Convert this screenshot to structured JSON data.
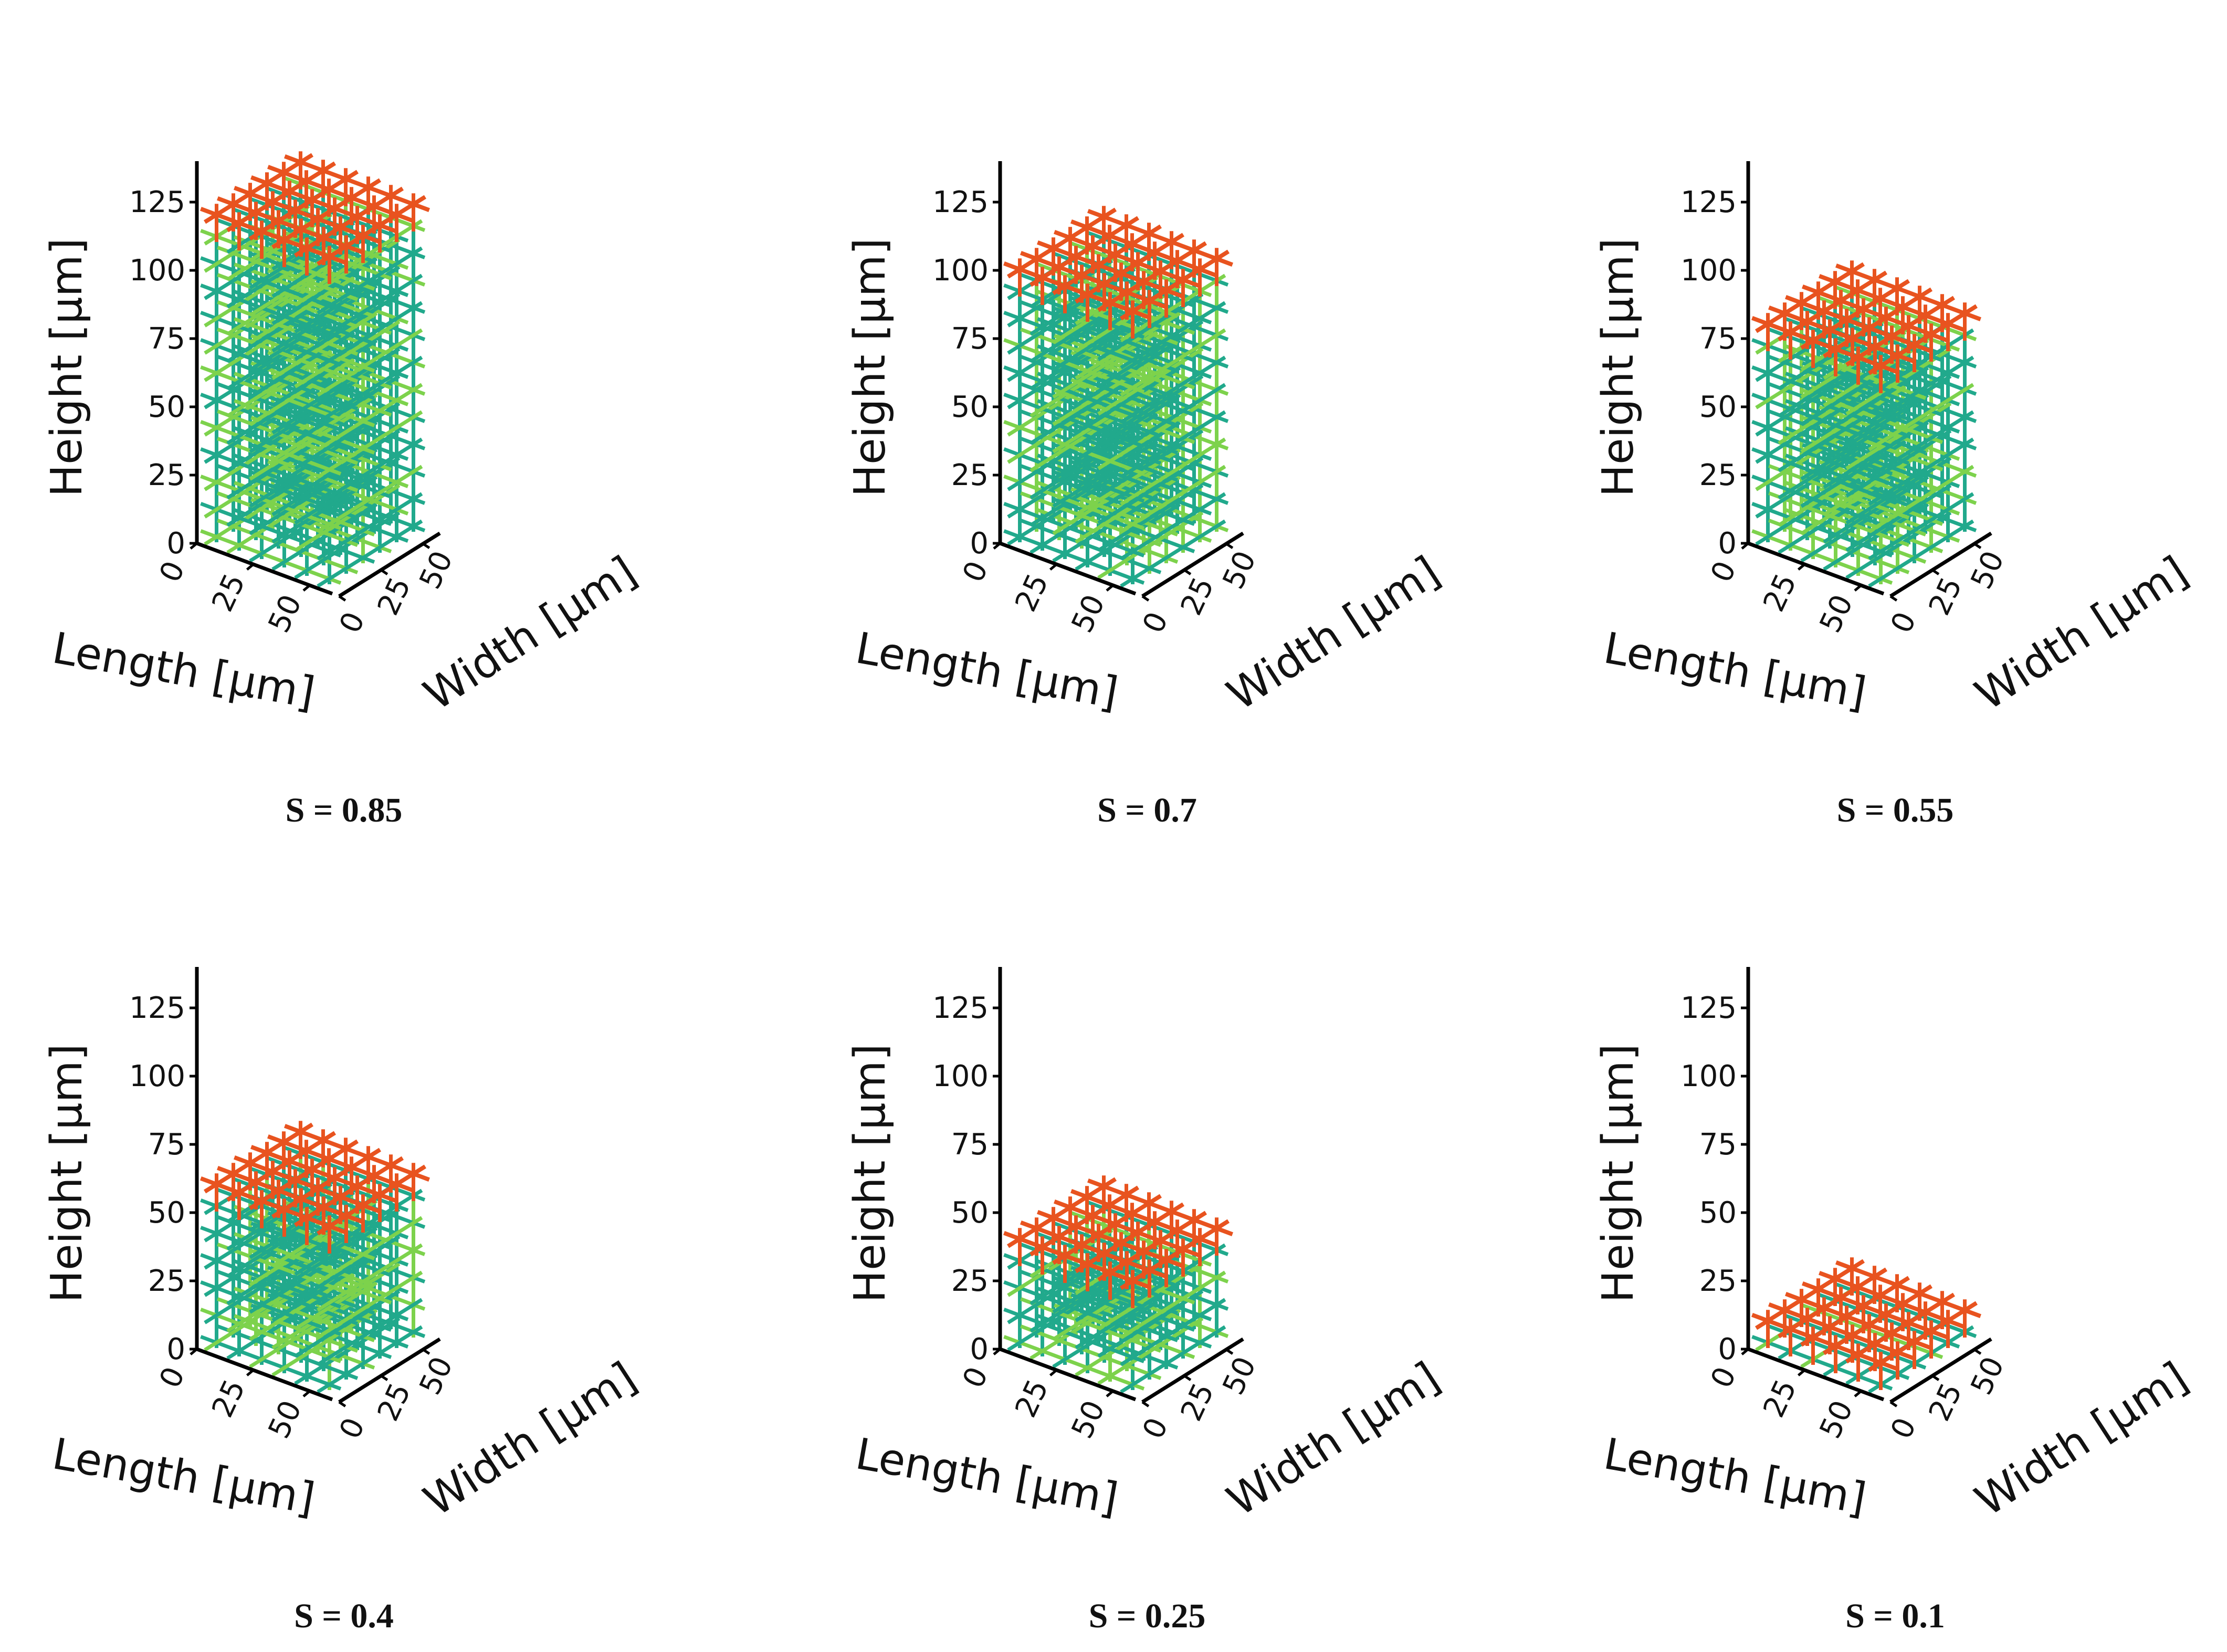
{
  "figure": {
    "colors": {
      "top_layer": "#E8531F",
      "interior": "#21A98C",
      "alternate": "#7DD24C",
      "axis": "#000000"
    }
  },
  "chart_data": [
    {
      "type": "3d-lattice",
      "caption": "S = 0.85",
      "xlabel": "Length [µm]",
      "ylabel": "Width [µm]",
      "zlabel": "Height [µm]",
      "x_ticks": [
        "0",
        "25",
        "50"
      ],
      "y_ticks": [
        "0",
        "25",
        "50"
      ],
      "z_ticks": [
        "0",
        "25",
        "50",
        "75",
        "100",
        "125"
      ],
      "xlim": [
        0,
        60
      ],
      "ylim": [
        0,
        60
      ],
      "zlim": [
        0,
        140
      ],
      "structure_height": 120,
      "top_layer_color": "#E8531F"
    },
    {
      "type": "3d-lattice",
      "caption": "S = 0.7",
      "xlabel": "Length [µm]",
      "ylabel": "Width [µm]",
      "zlabel": "Height [µm]",
      "x_ticks": [
        "0",
        "25",
        "50"
      ],
      "y_ticks": [
        "0",
        "25",
        "50"
      ],
      "z_ticks": [
        "0",
        "25",
        "50",
        "75",
        "100",
        "125"
      ],
      "xlim": [
        0,
        60
      ],
      "ylim": [
        0,
        60
      ],
      "zlim": [
        0,
        140
      ],
      "structure_height": 100,
      "top_layer_color": "#E8531F"
    },
    {
      "type": "3d-lattice",
      "caption": "S = 0.55",
      "xlabel": "Length [µm]",
      "ylabel": "Width [µm]",
      "zlabel": "Height [µm]",
      "x_ticks": [
        "0",
        "25",
        "50"
      ],
      "y_ticks": [
        "0",
        "25",
        "50"
      ],
      "z_ticks": [
        "0",
        "25",
        "50",
        "75",
        "100",
        "125"
      ],
      "xlim": [
        0,
        60
      ],
      "ylim": [
        0,
        60
      ],
      "zlim": [
        0,
        140
      ],
      "structure_height": 80,
      "top_layer_color": "#E8531F"
    },
    {
      "type": "3d-lattice",
      "caption": "S = 0.4",
      "xlabel": "Length [µm]",
      "ylabel": "Width [µm]",
      "zlabel": "Height [µm]",
      "x_ticks": [
        "0",
        "25",
        "50"
      ],
      "y_ticks": [
        "0",
        "25",
        "50"
      ],
      "z_ticks": [
        "0",
        "25",
        "50",
        "75",
        "100",
        "125"
      ],
      "xlim": [
        0,
        60
      ],
      "ylim": [
        0,
        60
      ],
      "zlim": [
        0,
        140
      ],
      "structure_height": 60,
      "top_layer_color": "#E8531F"
    },
    {
      "type": "3d-lattice",
      "caption": "S = 0.25",
      "xlabel": "Length [µm]",
      "ylabel": "Width [µm]",
      "zlabel": "Height [µm]",
      "x_ticks": [
        "0",
        "25",
        "50"
      ],
      "y_ticks": [
        "0",
        "25",
        "50"
      ],
      "z_ticks": [
        "0",
        "25",
        "50",
        "75",
        "100",
        "125"
      ],
      "xlim": [
        0,
        60
      ],
      "ylim": [
        0,
        60
      ],
      "zlim": [
        0,
        140
      ],
      "structure_height": 40,
      "top_layer_color": "#E8531F"
    },
    {
      "type": "3d-lattice",
      "caption": "S = 0.1",
      "xlabel": "Length [µm]",
      "ylabel": "Width [µm]",
      "zlabel": "Height [µm]",
      "x_ticks": [
        "0",
        "25",
        "50"
      ],
      "y_ticks": [
        "0",
        "25",
        "50"
      ],
      "z_ticks": [
        "0",
        "25",
        "50",
        "75",
        "100",
        "125"
      ],
      "xlim": [
        0,
        60
      ],
      "ylim": [
        0,
        60
      ],
      "zlim": [
        0,
        140
      ],
      "structure_height": 10,
      "top_layer_color": "#E8531F"
    }
  ]
}
